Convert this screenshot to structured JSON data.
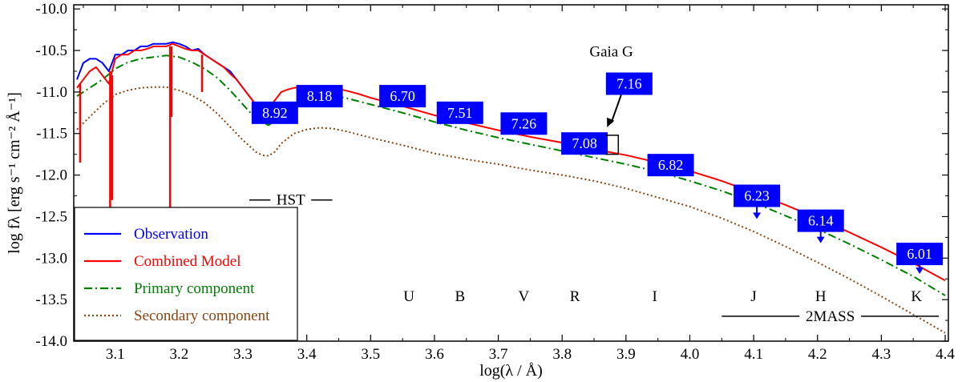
{
  "chart_data": {
    "type": "line",
    "xlabel": "log(λ / Å)",
    "ylabel": "log fλ [erg s⁻¹ cm⁻² Å⁻¹]",
    "xlim": [
      3.035,
      4.405
    ],
    "ylim": [
      -14.0,
      -9.95
    ],
    "x_ticks": [
      "3.1",
      "3.2",
      "3.3",
      "3.4",
      "3.5",
      "3.6",
      "3.7",
      "3.8",
      "3.9",
      "4.0",
      "4.1",
      "4.2",
      "4.3",
      "4.4"
    ],
    "y_ticks": [
      "-10.0",
      "-10.5",
      "-11.0",
      "-11.5",
      "-12.0",
      "-12.5",
      "-13.0",
      "-13.5",
      "-14.0"
    ],
    "grid": false,
    "legend_position": "bottom-left",
    "series": [
      {
        "name": "Observation",
        "color": "#0000ff",
        "style": "solid",
        "x": [
          3.04,
          3.05,
          3.06,
          3.07,
          3.08,
          3.09,
          3.1,
          3.11,
          3.12,
          3.13,
          3.14,
          3.15,
          3.16,
          3.17,
          3.18,
          3.19,
          3.2,
          3.21,
          3.22,
          3.23,
          3.24,
          3.25,
          3.26,
          3.27,
          3.28,
          3.29,
          3.3,
          3.31,
          3.32
        ],
        "y": [
          -10.85,
          -10.65,
          -10.6,
          -10.6,
          -10.65,
          -10.75,
          -10.55,
          -10.55,
          -10.5,
          -10.5,
          -10.45,
          -10.45,
          -10.42,
          -10.42,
          -10.42,
          -10.4,
          -10.42,
          -10.45,
          -10.5,
          -10.48,
          -10.55,
          -10.6,
          -10.65,
          -10.7,
          -10.75,
          -10.85,
          -10.95,
          -11.05,
          -11.15
        ]
      },
      {
        "name": "Combined Model",
        "color": "#ff0000",
        "style": "solid",
        "x": [
          3.04,
          3.05,
          3.06,
          3.07,
          3.08,
          3.09,
          3.1,
          3.11,
          3.12,
          3.13,
          3.14,
          3.15,
          3.16,
          3.17,
          3.18,
          3.19,
          3.2,
          3.21,
          3.22,
          3.23,
          3.24,
          3.25,
          3.26,
          3.27,
          3.28,
          3.29,
          3.3,
          3.31,
          3.32,
          3.33,
          3.34,
          3.35,
          3.36,
          3.37,
          3.38,
          3.4,
          3.42,
          3.44,
          3.46,
          3.48,
          3.5,
          3.55,
          3.6,
          3.65,
          3.7,
          3.75,
          3.8,
          3.85,
          3.9,
          3.95,
          4.0,
          4.05,
          4.1,
          4.15,
          4.2,
          4.25,
          4.3,
          4.35,
          4.4
        ],
        "y": [
          -10.95,
          -10.85,
          -10.75,
          -10.7,
          -10.8,
          -10.9,
          -10.6,
          -10.55,
          -10.55,
          -10.5,
          -10.5,
          -10.48,
          -10.45,
          -10.45,
          -10.45,
          -10.42,
          -10.45,
          -10.48,
          -10.5,
          -10.5,
          -10.55,
          -10.6,
          -10.65,
          -10.7,
          -10.78,
          -10.85,
          -10.95,
          -11.05,
          -11.15,
          -11.2,
          -11.2,
          -11.1,
          -11.0,
          -10.97,
          -10.95,
          -10.93,
          -10.93,
          -10.95,
          -10.98,
          -11.02,
          -11.07,
          -11.17,
          -11.28,
          -11.37,
          -11.46,
          -11.54,
          -11.61,
          -11.69,
          -11.76,
          -11.85,
          -11.95,
          -12.07,
          -12.21,
          -12.36,
          -12.52,
          -12.69,
          -12.87,
          -13.06,
          -13.27
        ]
      },
      {
        "name": "Primary component",
        "color": "#008000",
        "style": "dashdot",
        "x": [
          3.04,
          3.06,
          3.08,
          3.1,
          3.12,
          3.14,
          3.16,
          3.18,
          3.2,
          3.22,
          3.24,
          3.26,
          3.28,
          3.3,
          3.32,
          3.34,
          3.36,
          3.38,
          3.4,
          3.42,
          3.44,
          3.46,
          3.5,
          3.55,
          3.6,
          3.65,
          3.7,
          3.75,
          3.8,
          3.85,
          3.9,
          3.95,
          4.0,
          4.05,
          4.1,
          4.15,
          4.2,
          4.25,
          4.3,
          4.35,
          4.4
        ],
        "y": [
          -11.05,
          -10.95,
          -10.85,
          -10.72,
          -10.64,
          -10.6,
          -10.58,
          -10.56,
          -10.58,
          -10.64,
          -10.72,
          -10.83,
          -10.98,
          -11.15,
          -11.32,
          -11.4,
          -11.3,
          -11.15,
          -11.06,
          -11.03,
          -11.04,
          -11.07,
          -11.15,
          -11.25,
          -11.36,
          -11.46,
          -11.55,
          -11.63,
          -11.71,
          -11.79,
          -11.87,
          -11.96,
          -12.07,
          -12.19,
          -12.33,
          -12.49,
          -12.65,
          -12.83,
          -13.02,
          -13.22,
          -13.45
        ]
      },
      {
        "name": "Secondary component",
        "color": "#8b4513",
        "style": "dotted",
        "x": [
          3.04,
          3.06,
          3.08,
          3.1,
          3.12,
          3.14,
          3.16,
          3.18,
          3.2,
          3.22,
          3.24,
          3.26,
          3.28,
          3.3,
          3.32,
          3.33,
          3.34,
          3.35,
          3.36,
          3.38,
          3.4,
          3.42,
          3.44,
          3.46,
          3.5,
          3.55,
          3.6,
          3.65,
          3.7,
          3.75,
          3.8,
          3.85,
          3.9,
          3.95,
          4.0,
          4.05,
          4.1,
          4.15,
          4.2,
          4.25,
          4.3,
          4.35,
          4.4
        ],
        "y": [
          -11.45,
          -11.3,
          -11.15,
          -11.03,
          -10.98,
          -10.95,
          -10.94,
          -10.94,
          -10.98,
          -11.04,
          -11.13,
          -11.26,
          -11.42,
          -11.58,
          -11.72,
          -11.76,
          -11.77,
          -11.72,
          -11.62,
          -11.5,
          -11.45,
          -11.43,
          -11.44,
          -11.47,
          -11.55,
          -11.64,
          -11.74,
          -11.81,
          -11.87,
          -11.94,
          -12.0,
          -12.07,
          -12.16,
          -12.27,
          -12.38,
          -12.52,
          -12.68,
          -12.86,
          -13.05,
          -13.25,
          -13.46,
          -13.68,
          -13.9
        ]
      }
    ],
    "absorption_features": {
      "series": "Combined Model",
      "items": [
        {
          "x": 3.045,
          "y_top": -10.9,
          "y_bottom": -11.85
        },
        {
          "x": 3.092,
          "y_top": -10.75,
          "y_bottom": -12.55
        },
        {
          "x": 3.095,
          "y_top": -10.8,
          "y_bottom": -12.3
        },
        {
          "x": 3.186,
          "y_top": -10.45,
          "y_bottom": -12.6
        },
        {
          "x": 3.188,
          "y_top": -10.45,
          "y_bottom": -11.3
        },
        {
          "x": 3.236,
          "y_top": -10.55,
          "y_bottom": -11.0
        }
      ]
    },
    "photometry": [
      {
        "label": "8.92",
        "x": 3.35,
        "y": -11.25
      },
      {
        "label": "8.18",
        "x": 3.42,
        "y": -11.05
      },
      {
        "label": "6.70",
        "x": 3.55,
        "y": -11.05
      },
      {
        "label": "7.51",
        "x": 3.64,
        "y": -11.25
      },
      {
        "label": "7.26",
        "x": 3.74,
        "y": -11.38
      },
      {
        "label": "7.08",
        "x": 3.835,
        "y": -11.62
      },
      {
        "label": "6.82",
        "x": 3.97,
        "y": -11.88
      },
      {
        "label": "6.23",
        "x": 4.105,
        "y": -12.25
      },
      {
        "label": "6.14",
        "x": 4.205,
        "y": -12.55
      },
      {
        "label": "6.01",
        "x": 4.36,
        "y": -12.95
      }
    ],
    "upper_limit_arrows": [
      {
        "x": 4.105,
        "y_from": -12.37,
        "y_to": -12.53
      },
      {
        "x": 4.205,
        "y_from": -12.67,
        "y_to": -12.82
      },
      {
        "x": 4.36,
        "y_from": -13.06,
        "y_to": -13.19
      }
    ],
    "gaia_annotation": {
      "label": "Gaia G",
      "label_x": 3.877,
      "label_y": -10.57,
      "value": "7.16",
      "value_x": 3.905,
      "value_y": -10.9,
      "box_x": [
        3.868,
        3.888
      ],
      "box_y": [
        -11.52,
        -11.75
      ]
    },
    "bands": [
      {
        "label": "U",
        "x": 3.56
      },
      {
        "label": "B",
        "x": 3.64
      },
      {
        "label": "V",
        "x": 3.74
      },
      {
        "label": "R",
        "x": 3.82
      },
      {
        "label": "I",
        "x": 3.945
      },
      {
        "label": "J",
        "x": 4.1
      },
      {
        "label": "H",
        "x": 4.205
      },
      {
        "label": "K",
        "x": 4.355
      }
    ],
    "bands_y": -13.45,
    "ranges": [
      {
        "label": "HST",
        "x_start": 3.31,
        "x_end": 3.44,
        "y": -12.3
      },
      {
        "label": "2MASS",
        "x_start": 4.05,
        "x_end": 4.39,
        "y": -13.7
      }
    ]
  }
}
